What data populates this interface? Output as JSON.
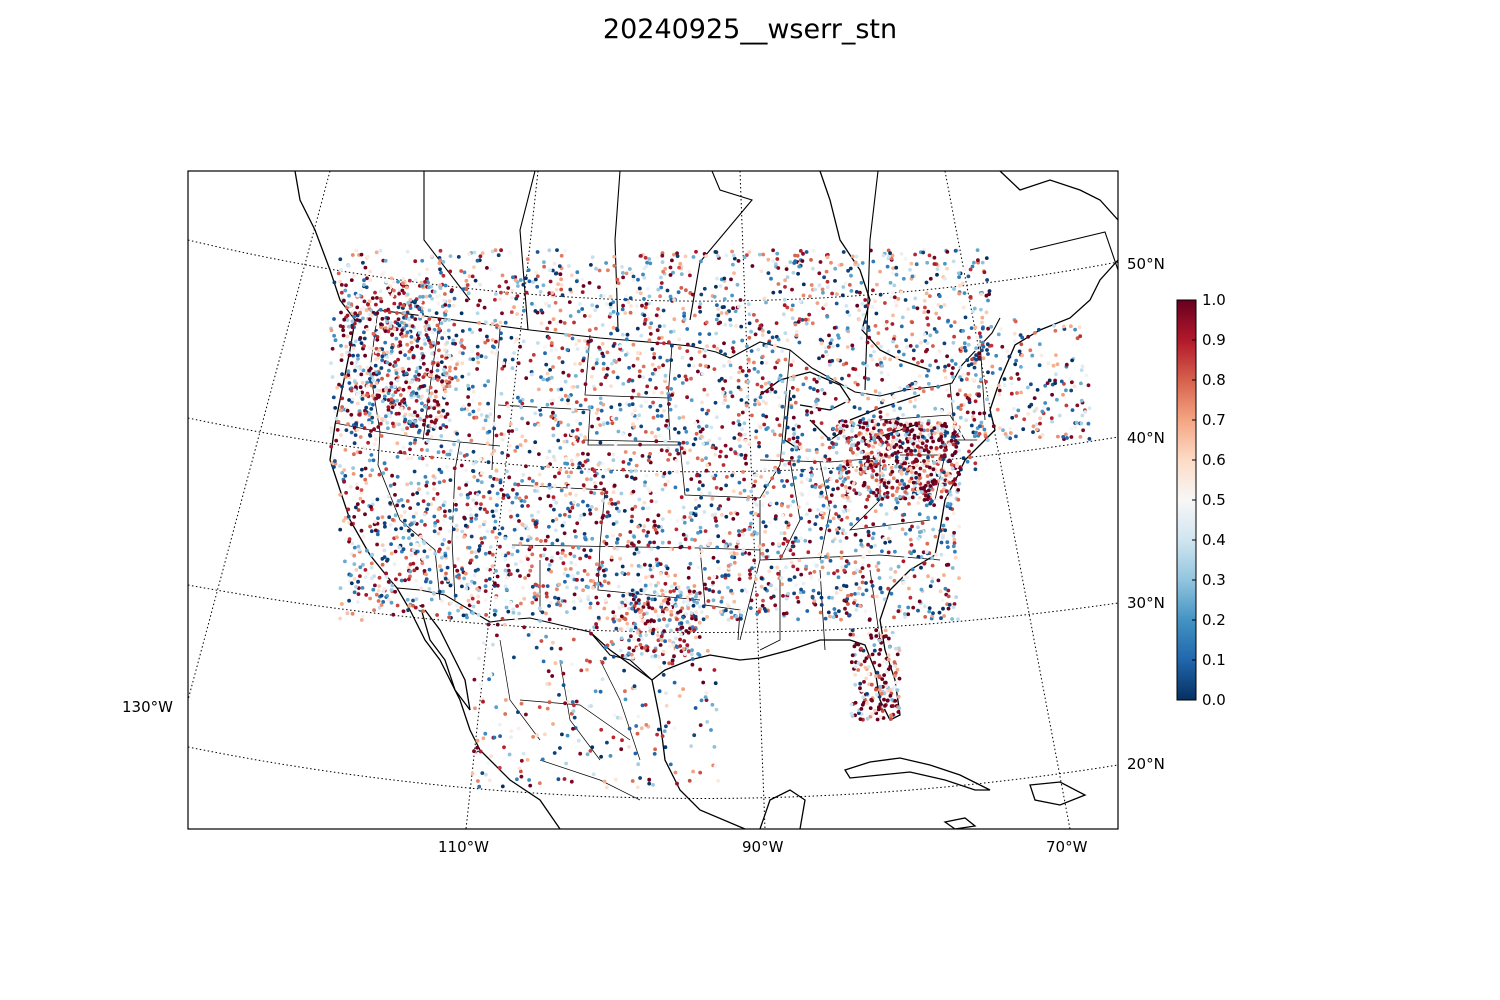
{
  "title": "20240925__wserr_stn",
  "map": {
    "projection": "lambert-conformal-conic",
    "meridians": [
      {
        "value": -130,
        "label": "130°W"
      },
      {
        "value": -110,
        "label": "110°W"
      },
      {
        "value": -90,
        "label": "90°W"
      },
      {
        "value": -70,
        "label": "70°W"
      }
    ],
    "parallels": [
      {
        "value": 20,
        "label": "20°N"
      },
      {
        "value": 30,
        "label": "30°N"
      },
      {
        "value": 40,
        "label": "40°N"
      },
      {
        "value": 50,
        "label": "50°N"
      }
    ],
    "layers": [
      "coastlines",
      "country-borders",
      "state-borders",
      "station-points"
    ]
  },
  "colorbar": {
    "colormap": "RdBu_r",
    "range": [
      0.0,
      1.0
    ],
    "ticks": [
      "0.0",
      "0.1",
      "0.2",
      "0.3",
      "0.4",
      "0.5",
      "0.6",
      "0.7",
      "0.8",
      "0.9",
      "1.0"
    ],
    "stops": [
      "#053061",
      "#2166ac",
      "#4393c3",
      "#92c5de",
      "#d1e5f0",
      "#f7f7f7",
      "#fddbc7",
      "#f4a582",
      "#d6604d",
      "#b2182b",
      "#67001f"
    ]
  }
}
